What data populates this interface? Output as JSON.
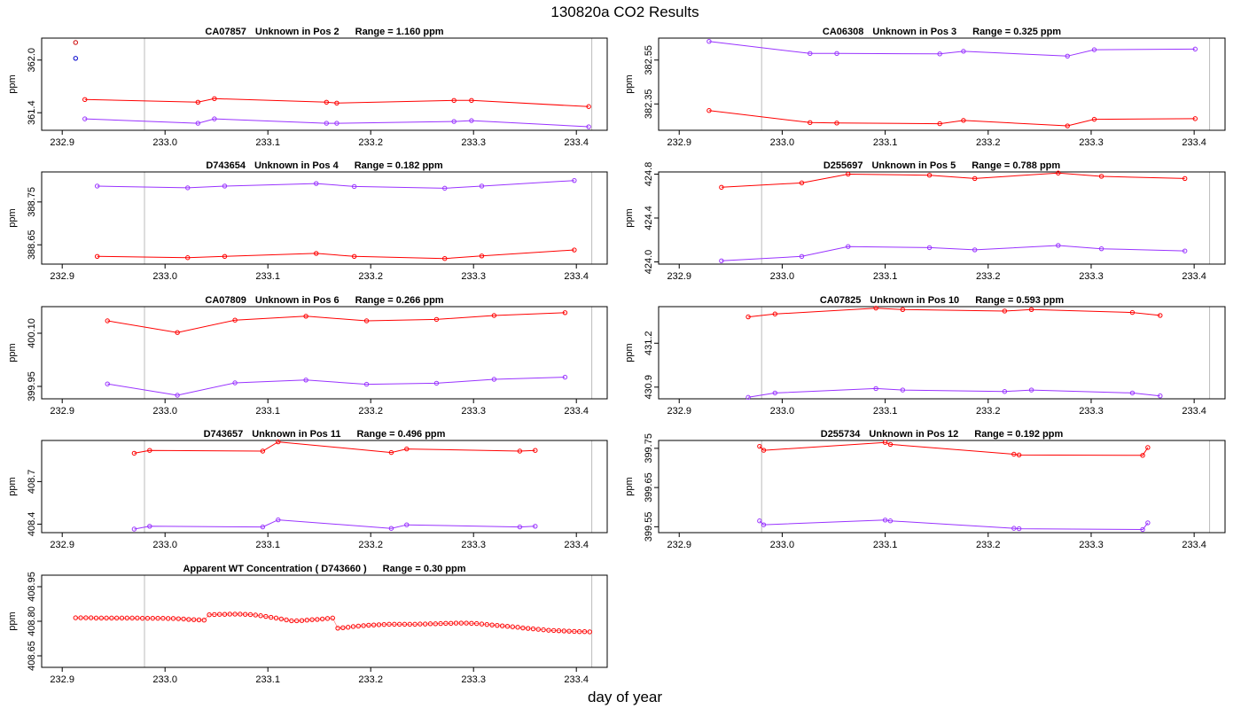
{
  "page": {
    "title": "130820a  CO2 Results",
    "xlabel": "day of year"
  },
  "colors": {
    "series_a": "#ff0000",
    "series_b": "#9933ff",
    "marker_b": "#0000cc",
    "marker_a": "#cc0000",
    "vline": "#bbbbbb"
  },
  "chart_data": [
    {
      "type": "line",
      "id": "p1",
      "label_id": "CA07857",
      "label_pos": "Unknown in Pos 2",
      "label_range": "Range =  1.160 ppm",
      "ylabel": "ppm",
      "xlim": [
        232.88,
        233.43
      ],
      "ylim": [
        361.2,
        362.25
      ],
      "xticks": [
        "232.9",
        "233.0",
        "233.1",
        "233.2",
        "233.3",
        "233.4"
      ],
      "yticks": [
        "361.4",
        "362.0"
      ],
      "vlines": [
        232.98,
        233.415
      ],
      "extra_points": [
        {
          "x": 232.913,
          "y": 362.2,
          "color": "#cc0000"
        },
        {
          "x": 232.913,
          "y": 362.02,
          "color": "#0000cc"
        }
      ],
      "series": [
        {
          "name": "red",
          "color": "#ff0000",
          "x": [
            232.922,
            233.032,
            233.048,
            233.157,
            233.167,
            233.281,
            233.298,
            233.412
          ],
          "y": [
            361.55,
            361.52,
            361.56,
            361.52,
            361.51,
            361.54,
            361.54,
            361.47
          ]
        },
        {
          "name": "purple",
          "color": "#9933ff",
          "x": [
            232.922,
            233.032,
            233.048,
            233.157,
            233.167,
            233.281,
            233.298,
            233.412
          ],
          "y": [
            361.33,
            361.28,
            361.33,
            361.28,
            361.28,
            361.3,
            361.31,
            361.24
          ]
        }
      ]
    },
    {
      "type": "line",
      "id": "p2",
      "label_id": "CA06308",
      "label_pos": "Unknown in Pos 3",
      "label_range": "Range =  0.325 ppm",
      "ylabel": "ppm",
      "xlim": [
        232.88,
        233.43
      ],
      "ylim": [
        382.23,
        382.65
      ],
      "xticks": [
        "232.9",
        "233.0",
        "233.1",
        "233.2",
        "233.3",
        "233.4"
      ],
      "yticks": [
        "382.35",
        "382.55"
      ],
      "vlines": [
        232.98,
        233.415
      ],
      "extra_points": [],
      "series": [
        {
          "name": "red",
          "color": "#ff0000",
          "x": [
            232.929,
            233.027,
            233.053,
            233.153,
            233.176,
            233.277,
            233.303,
            233.401
          ],
          "y": [
            382.32,
            382.265,
            382.263,
            382.26,
            382.275,
            382.25,
            382.28,
            382.283
          ]
        },
        {
          "name": "purple",
          "color": "#9933ff",
          "x": [
            232.929,
            233.027,
            233.053,
            233.153,
            233.176,
            233.277,
            233.303,
            233.401
          ],
          "y": [
            382.635,
            382.58,
            382.58,
            382.578,
            382.59,
            382.568,
            382.597,
            382.6
          ]
        }
      ]
    },
    {
      "type": "line",
      "id": "p3",
      "label_id": "D743654",
      "label_pos": "Unknown in Pos 4",
      "label_range": "Range =  0.182 ppm",
      "ylabel": "ppm",
      "xlim": [
        232.88,
        233.43
      ],
      "ylim": [
        388.605,
        388.82
      ],
      "xticks": [
        "232.9",
        "233.0",
        "233.1",
        "233.2",
        "233.3",
        "233.4"
      ],
      "yticks": [
        "388.65",
        "388.75"
      ],
      "vlines": [
        232.98,
        233.415
      ],
      "extra_points": [],
      "series": [
        {
          "name": "red",
          "color": "#ff0000",
          "x": [
            232.934,
            233.022,
            233.058,
            233.147,
            233.184,
            233.272,
            233.308,
            233.398
          ],
          "y": [
            388.623,
            388.62,
            388.623,
            388.63,
            388.623,
            388.618,
            388.624,
            388.638
          ]
        },
        {
          "name": "purple",
          "color": "#9933ff",
          "x": [
            232.934,
            233.022,
            233.058,
            233.147,
            233.184,
            233.272,
            233.308,
            233.398
          ],
          "y": [
            388.787,
            388.783,
            388.787,
            388.793,
            388.786,
            388.782,
            388.787,
            388.8
          ]
        }
      ]
    },
    {
      "type": "line",
      "id": "p4",
      "label_id": "D255697",
      "label_pos": "Unknown in Pos 5",
      "label_range": "Range =  0.788 ppm",
      "ylabel": "ppm",
      "xlim": [
        232.88,
        233.43
      ],
      "ylim": [
        423.98,
        424.82
      ],
      "xticks": [
        "232.9",
        "233.0",
        "233.1",
        "233.2",
        "233.3",
        "233.4"
      ],
      "yticks": [
        "424.0",
        "424.4",
        "424.8"
      ],
      "vlines": [
        232.98,
        233.415
      ],
      "extra_points": [],
      "series": [
        {
          "name": "red",
          "color": "#ff0000",
          "x": [
            232.941,
            233.019,
            233.064,
            233.143,
            233.187,
            233.268,
            233.31,
            233.391
          ],
          "y": [
            424.68,
            424.72,
            424.8,
            424.79,
            424.76,
            424.81,
            424.78,
            424.76
          ]
        },
        {
          "name": "purple",
          "color": "#9933ff",
          "x": [
            232.941,
            233.019,
            233.064,
            233.143,
            233.187,
            233.268,
            233.31,
            233.391
          ],
          "y": [
            424.01,
            424.05,
            424.14,
            424.13,
            424.11,
            424.15,
            424.12,
            424.1
          ]
        }
      ]
    },
    {
      "type": "line",
      "id": "p5",
      "label_id": "CA07809",
      "label_pos": "Unknown in Pos 6",
      "label_range": "Range =  0.266 ppm",
      "ylabel": "ppm",
      "xlim": [
        232.88,
        233.43
      ],
      "ylim": [
        399.915,
        400.175
      ],
      "xticks": [
        "232.9",
        "233.0",
        "233.1",
        "233.2",
        "233.3",
        "233.4"
      ],
      "yticks": [
        "399.95",
        "400.10"
      ],
      "vlines": [
        232.98,
        233.415
      ],
      "extra_points": [],
      "series": [
        {
          "name": "red",
          "color": "#ff0000",
          "x": [
            232.944,
            233.012,
            233.068,
            233.137,
            233.196,
            233.264,
            233.32,
            233.389
          ],
          "y": [
            400.135,
            400.102,
            400.137,
            400.148,
            400.135,
            400.139,
            400.15,
            400.158
          ]
        },
        {
          "name": "purple",
          "color": "#9933ff",
          "x": [
            232.944,
            233.012,
            233.068,
            233.137,
            233.196,
            233.264,
            233.32,
            233.389
          ],
          "y": [
            399.957,
            399.925,
            399.96,
            399.968,
            399.956,
            399.959,
            399.97,
            399.976
          ]
        }
      ]
    },
    {
      "type": "line",
      "id": "p6",
      "label_id": "CA07825",
      "label_pos": "Unknown in Pos 10",
      "label_range": "Range =  0.593 ppm",
      "ylabel": "ppm",
      "xlim": [
        232.88,
        233.43
      ],
      "ylim": [
        430.82,
        431.45
      ],
      "xticks": [
        "232.9",
        "233.0",
        "233.1",
        "233.2",
        "233.3",
        "233.4"
      ],
      "yticks": [
        "430.9",
        "431.2"
      ],
      "vlines": [
        232.98,
        233.415
      ],
      "extra_points": [],
      "series": [
        {
          "name": "red",
          "color": "#ff0000",
          "x": [
            232.967,
            232.993,
            233.091,
            233.117,
            233.216,
            233.242,
            233.34,
            233.367
          ],
          "y": [
            431.38,
            431.4,
            431.44,
            431.43,
            431.42,
            431.43,
            431.41,
            431.39
          ]
        },
        {
          "name": "purple",
          "color": "#9933ff",
          "x": [
            232.967,
            232.993,
            233.091,
            233.117,
            233.216,
            233.242,
            233.34,
            233.367
          ],
          "y": [
            430.83,
            430.86,
            430.89,
            430.88,
            430.87,
            430.88,
            430.86,
            430.84
          ]
        }
      ]
    },
    {
      "type": "line",
      "id": "p7",
      "label_id": "D743657",
      "label_pos": "Unknown in Pos 11",
      "label_range": "Range =  0.496 ppm",
      "ylabel": "ppm",
      "xlim": [
        232.88,
        233.43
      ],
      "ylim": [
        408.34,
        408.99
      ],
      "xticks": [
        "232.9",
        "233.0",
        "233.1",
        "233.2",
        "233.3",
        "233.4"
      ],
      "yticks": [
        "408.4",
        "408.7"
      ],
      "vlines": [
        232.98,
        233.415
      ],
      "extra_points": [],
      "series": [
        {
          "name": "red",
          "color": "#ff0000",
          "x": [
            232.97,
            232.985,
            233.095,
            233.11,
            233.22,
            233.235,
            233.345,
            233.36
          ],
          "y": [
            408.9,
            408.92,
            408.915,
            408.98,
            408.905,
            408.93,
            408.915,
            408.92
          ]
        },
        {
          "name": "purple",
          "color": "#9933ff",
          "x": [
            232.97,
            232.985,
            233.095,
            233.11,
            233.22,
            233.235,
            233.345,
            233.36
          ],
          "y": [
            408.365,
            408.385,
            408.38,
            408.43,
            408.37,
            408.395,
            408.38,
            408.385
          ]
        }
      ]
    },
    {
      "type": "line",
      "id": "p8",
      "label_id": "D255734",
      "label_pos": "Unknown in Pos 12",
      "label_range": "Range =  0.192 ppm",
      "ylabel": "ppm",
      "xlim": [
        232.88,
        233.43
      ],
      "ylim": [
        399.535,
        399.77
      ],
      "xticks": [
        "232.9",
        "233.0",
        "233.1",
        "233.2",
        "233.3",
        "233.4"
      ],
      "yticks": [
        "399.55",
        "399.65",
        "399.75"
      ],
      "vlines": [
        232.98,
        233.415
      ],
      "extra_points": [],
      "series": [
        {
          "name": "red",
          "color": "#ff0000",
          "x": [
            232.978,
            232.982,
            233.1,
            233.105,
            233.225,
            233.23,
            233.35,
            233.355
          ],
          "y": [
            399.755,
            399.745,
            399.765,
            399.76,
            399.735,
            399.733,
            399.732,
            399.752
          ]
        },
        {
          "name": "purple",
          "color": "#9933ff",
          "x": [
            232.978,
            232.982,
            233.1,
            233.105,
            233.225,
            233.23,
            233.35,
            233.355
          ],
          "y": [
            399.565,
            399.555,
            399.567,
            399.565,
            399.546,
            399.545,
            399.543,
            399.56
          ]
        }
      ]
    },
    {
      "type": "line",
      "id": "p9",
      "label_id": "Apparent WT Concentration ( D743660 )",
      "label_pos": "",
      "label_range": "Range = 0.30 ppm",
      "ylabel": "ppm",
      "xlim": [
        232.88,
        233.43
      ],
      "ylim": [
        408.6,
        409.0
      ],
      "xticks": [
        "232.9",
        "233.0",
        "233.1",
        "233.2",
        "233.3",
        "233.4"
      ],
      "yticks": [
        "408.65",
        "408.80",
        "408.95"
      ],
      "vlines": [
        232.98,
        233.415
      ],
      "extra_points": [],
      "series": [
        {
          "name": "red",
          "color": "#ff0000",
          "connect": false,
          "x": [
            232.913,
            232.918,
            232.923,
            232.928,
            232.933,
            232.938,
            232.943,
            232.948,
            232.953,
            232.958,
            232.963,
            232.968,
            232.973,
            232.978,
            232.983,
            232.988,
            232.993,
            232.998,
            233.003,
            233.008,
            233.013,
            233.018,
            233.023,
            233.028,
            233.033,
            233.038,
            233.043,
            233.048,
            233.053,
            233.058,
            233.063,
            233.068,
            233.073,
            233.078,
            233.083,
            233.088,
            233.093,
            233.098,
            233.103,
            233.108,
            233.113,
            233.118,
            233.123,
            233.128,
            233.133,
            233.138,
            233.143,
            233.148,
            233.153,
            233.158,
            233.163,
            233.168,
            233.173,
            233.178,
            233.183,
            233.188,
            233.193,
            233.198,
            233.203,
            233.208,
            233.213,
            233.218,
            233.223,
            233.228,
            233.233,
            233.238,
            233.243,
            233.248,
            233.253,
            233.258,
            233.263,
            233.268,
            233.273,
            233.278,
            233.283,
            233.288,
            233.293,
            233.298,
            233.303,
            233.308,
            233.313,
            233.318,
            233.323,
            233.328,
            233.333,
            233.338,
            233.343,
            233.348,
            233.353,
            233.358,
            233.363,
            233.368,
            233.373,
            233.378,
            233.383,
            233.388,
            233.393,
            233.398,
            233.403,
            233.408,
            233.413
          ],
          "y": [
            408.815,
            408.815,
            408.815,
            408.815,
            408.814,
            408.814,
            408.814,
            408.814,
            408.814,
            408.814,
            408.814,
            408.814,
            408.814,
            408.813,
            408.813,
            408.813,
            408.813,
            408.813,
            408.812,
            408.812,
            408.811,
            408.81,
            408.808,
            408.807,
            408.806,
            408.805,
            408.828,
            408.829,
            408.83,
            408.83,
            408.831,
            408.831,
            408.831,
            408.83,
            408.829,
            408.827,
            408.824,
            408.821,
            408.817,
            408.814,
            408.81,
            408.806,
            408.802,
            408.802,
            408.803,
            408.805,
            408.807,
            408.808,
            408.81,
            408.812,
            408.814,
            408.77,
            408.772,
            408.774,
            408.777,
            408.779,
            408.781,
            408.783,
            408.784,
            408.785,
            408.786,
            408.787,
            408.787,
            408.787,
            408.787,
            408.787,
            408.787,
            408.788,
            408.788,
            408.789,
            408.789,
            408.79,
            408.791,
            408.791,
            408.792,
            408.792,
            408.792,
            408.791,
            408.79,
            408.788,
            408.786,
            408.784,
            408.782,
            408.78,
            408.778,
            408.776,
            408.774,
            408.771,
            408.769,
            408.767,
            408.765,
            408.763,
            408.761,
            408.76,
            408.759,
            408.758,
            408.757,
            408.756,
            408.755,
            408.755,
            408.754
          ]
        }
      ]
    }
  ]
}
